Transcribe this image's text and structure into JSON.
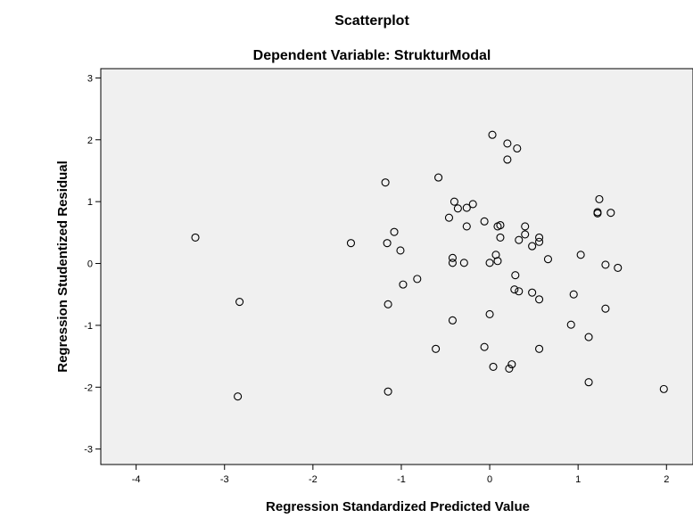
{
  "chart_data": {
    "type": "scatter",
    "title": "Scatterplot",
    "subtitle": "Dependent Variable: StrukturModal",
    "xlabel": "Regression Standardized Predicted Value",
    "ylabel": "Regression Studentized Residual",
    "xlim": [
      -4.4,
      2.3
    ],
    "ylim": [
      -3.25,
      3.15
    ],
    "xticks": [
      -4,
      -3,
      -2,
      -1,
      0,
      1,
      2
    ],
    "yticks": [
      3,
      2,
      1,
      0,
      -1,
      -2,
      -3
    ],
    "grid": false,
    "colors": {
      "plot_bg": "#f0f0f0",
      "marker": "#000000",
      "axis": "#000000"
    },
    "points": [
      {
        "x": -3.33,
        "y": 0.42
      },
      {
        "x": -2.83,
        "y": -0.62
      },
      {
        "x": -2.85,
        "y": -2.15
      },
      {
        "x": -1.57,
        "y": 0.33
      },
      {
        "x": -1.18,
        "y": 1.31
      },
      {
        "x": -1.16,
        "y": 0.33
      },
      {
        "x": -1.15,
        "y": -0.66
      },
      {
        "x": -1.15,
        "y": -2.07
      },
      {
        "x": -1.08,
        "y": 0.51
      },
      {
        "x": -1.01,
        "y": 0.21
      },
      {
        "x": -0.98,
        "y": -0.34
      },
      {
        "x": -0.82,
        "y": -0.25
      },
      {
        "x": -0.61,
        "y": -1.38
      },
      {
        "x": -0.58,
        "y": 1.39
      },
      {
        "x": -0.46,
        "y": 0.74
      },
      {
        "x": -0.42,
        "y": 0.09
      },
      {
        "x": -0.42,
        "y": 0.01
      },
      {
        "x": -0.4,
        "y": 1.0
      },
      {
        "x": -0.42,
        "y": -0.92
      },
      {
        "x": -0.36,
        "y": 0.89
      },
      {
        "x": -0.29,
        "y": 0.01
      },
      {
        "x": -0.26,
        "y": 0.9
      },
      {
        "x": -0.26,
        "y": 0.6
      },
      {
        "x": -0.19,
        "y": 0.96
      },
      {
        "x": -0.06,
        "y": 0.68
      },
      {
        "x": -0.06,
        "y": -1.35
      },
      {
        "x": 0.0,
        "y": 0.01
      },
      {
        "x": 0.0,
        "y": -0.82
      },
      {
        "x": 0.03,
        "y": 2.08
      },
      {
        "x": 0.04,
        "y": -1.67
      },
      {
        "x": 0.07,
        "y": 0.14
      },
      {
        "x": 0.09,
        "y": 0.04
      },
      {
        "x": 0.09,
        "y": 0.6
      },
      {
        "x": 0.12,
        "y": 0.62
      },
      {
        "x": 0.12,
        "y": 0.42
      },
      {
        "x": 0.2,
        "y": 1.94
      },
      {
        "x": 0.2,
        "y": 1.68
      },
      {
        "x": 0.22,
        "y": -1.7
      },
      {
        "x": 0.25,
        "y": -1.63
      },
      {
        "x": 0.28,
        "y": -0.42
      },
      {
        "x": 0.29,
        "y": -0.19
      },
      {
        "x": 0.31,
        "y": 1.86
      },
      {
        "x": 0.33,
        "y": 0.38
      },
      {
        "x": 0.33,
        "y": -0.45
      },
      {
        "x": 0.4,
        "y": 0.6
      },
      {
        "x": 0.4,
        "y": 0.47
      },
      {
        "x": 0.48,
        "y": 0.28
      },
      {
        "x": 0.48,
        "y": -0.47
      },
      {
        "x": 0.56,
        "y": 0.42
      },
      {
        "x": 0.56,
        "y": 0.35
      },
      {
        "x": 0.56,
        "y": -0.58
      },
      {
        "x": 0.56,
        "y": -1.38
      },
      {
        "x": 0.66,
        "y": 0.07
      },
      {
        "x": 0.92,
        "y": -0.99
      },
      {
        "x": 0.95,
        "y": -0.5
      },
      {
        "x": 1.03,
        "y": 0.14
      },
      {
        "x": 1.12,
        "y": -1.19
      },
      {
        "x": 1.12,
        "y": -1.92
      },
      {
        "x": 1.22,
        "y": 0.83
      },
      {
        "x": 1.22,
        "y": 0.81
      },
      {
        "x": 1.24,
        "y": 1.04
      },
      {
        "x": 1.31,
        "y": -0.02
      },
      {
        "x": 1.31,
        "y": -0.73
      },
      {
        "x": 1.37,
        "y": 0.82
      },
      {
        "x": 1.45,
        "y": -0.07
      },
      {
        "x": 1.97,
        "y": -2.03
      }
    ]
  }
}
